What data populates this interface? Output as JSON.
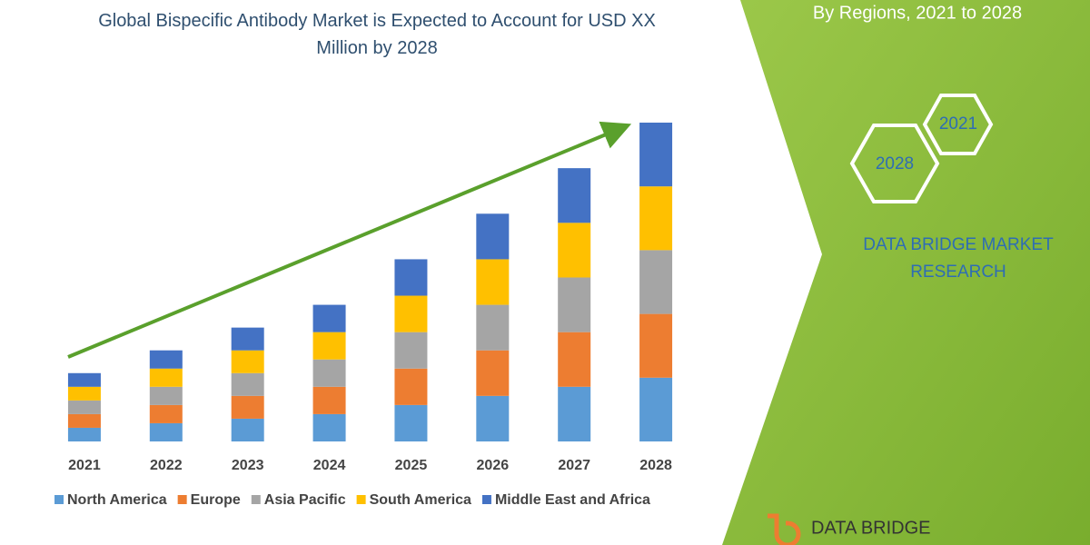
{
  "chart_data": {
    "type": "stacked-bar",
    "title": "Global Bispecific Antibody Market is Expected to Account for USD XX Million by 2028",
    "subtitle": "By Regions, 2021 to 2028",
    "categories": [
      "2021",
      "2022",
      "2023",
      "2024",
      "2025",
      "2026",
      "2027",
      "2028"
    ],
    "series": [
      {
        "name": "North America",
        "color": "#5b9bd5",
        "values": [
          1.5,
          2,
          2.5,
          3,
          4,
          5,
          6,
          7
        ]
      },
      {
        "name": "Europe",
        "color": "#ed7d31",
        "values": [
          1.5,
          2,
          2.5,
          3,
          4,
          5,
          6,
          7
        ]
      },
      {
        "name": "Asia Pacific",
        "color": "#a5a5a5",
        "values": [
          1.5,
          2,
          2.5,
          3,
          4,
          5,
          6,
          7
        ]
      },
      {
        "name": "South America",
        "color": "#ffc000",
        "values": [
          1.5,
          2,
          2.5,
          3,
          4,
          5,
          6,
          7
        ]
      },
      {
        "name": "Middle East and Africa",
        "color": "#4472c4",
        "values": [
          1.5,
          2,
          2.5,
          3,
          4,
          5,
          6,
          7
        ]
      }
    ],
    "ylim": [
      0,
      35
    ],
    "legend": "bottom",
    "annotations": [
      "2021",
      "2028",
      "DATA BRIDGE MARKET RESEARCH",
      "DATA BRIDGE"
    ]
  }
}
